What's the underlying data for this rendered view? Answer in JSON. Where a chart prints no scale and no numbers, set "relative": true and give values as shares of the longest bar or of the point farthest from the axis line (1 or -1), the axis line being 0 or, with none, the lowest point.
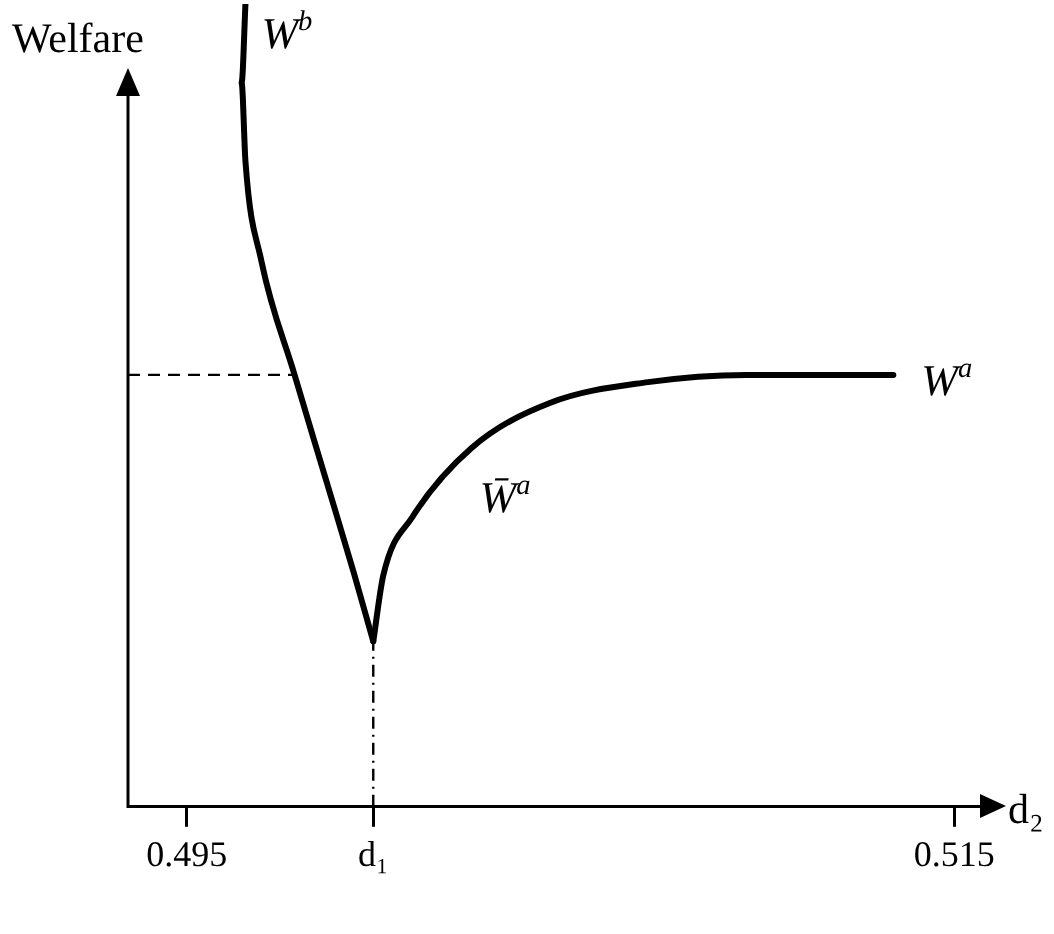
{
  "chart_data": {
    "type": "line",
    "relative": true,
    "ylabel": "Welfare",
    "xlabel": "d₂",
    "xlim": [
      0.49347,
      0.51572
    ],
    "xticks": [
      0.495,
      {
        "value": 0.49986,
        "label": "d₁"
      },
      0.515
    ],
    "legend": false,
    "grid": false,
    "marker": "none",
    "line_style": "solid",
    "series": [
      {
        "name": "W$^{b}$",
        "color": "#000000",
        "x": [
          0.49653,
          0.49643,
          0.49653,
          0.49694,
          0.49781,
          0.49858,
          0.49935,
          0.49986
        ],
        "values": [
          1.0,
          0.902,
          0.804,
          0.681,
          0.538,
          0.415,
          0.292,
          0.206
        ]
      },
      {
        "name": "W̄$^{a}$",
        "color": "#000000",
        "x": [
          0.49986,
          0.50012,
          0.50088,
          0.50242,
          0.50446,
          0.50702,
          0.50958,
          0.51341
        ],
        "values": [
          0.206,
          0.288,
          0.361,
          0.447,
          0.503,
          0.529,
          0.538,
          0.538
        ]
      }
    ],
    "annotations": [
      {
        "text": "W$^{a}$",
        "x": 0.51341,
        "y": 0.538
      }
    ],
    "ref_lines": [
      {
        "axis": "y",
        "value": 0.538,
        "line_style": "dashed",
        "color": "#000000"
      },
      {
        "axis": "x",
        "value": 0.49986,
        "line_style": "dotted",
        "color": "#000000"
      }
    ]
  }
}
